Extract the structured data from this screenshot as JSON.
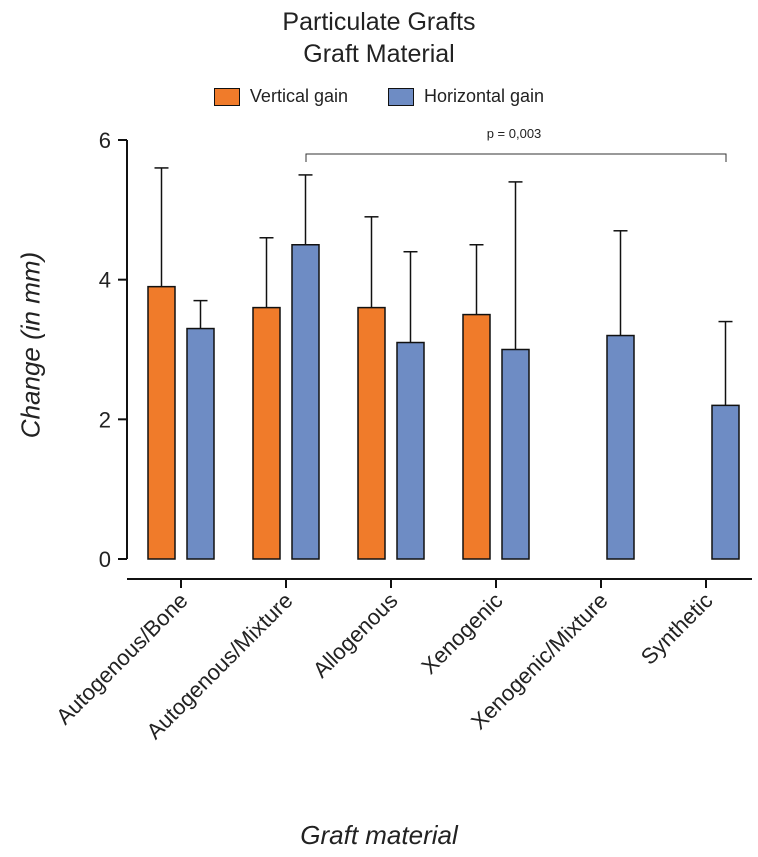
{
  "chart_data": {
    "type": "bar",
    "title": "Particulate Grafts",
    "subtitle": "Graft Material",
    "xlabel": "Graft material",
    "ylabel": "Change (in mm)",
    "ylim": [
      0,
      6
    ],
    "yticks": [
      0,
      2,
      4,
      6
    ],
    "grid": false,
    "legend_position": "top",
    "categories": [
      "Autogenous/Bone",
      "Autogenous/Mixture",
      "Allogenous",
      "Xenogenic",
      "Xenogenic/Mixture",
      "Synthetic"
    ],
    "series": [
      {
        "name": "Vertical gain",
        "color": "#F07B2A",
        "values": [
          3.9,
          3.6,
          3.6,
          3.5,
          null,
          null
        ],
        "error_upper": [
          5.6,
          4.6,
          4.9,
          4.5,
          null,
          null
        ]
      },
      {
        "name": "Horizontal gain",
        "color": "#6E8CC4",
        "values": [
          3.3,
          4.5,
          3.1,
          3.0,
          3.2,
          2.2
        ],
        "error_upper": [
          3.7,
          5.5,
          4.4,
          5.4,
          4.7,
          3.4
        ]
      }
    ],
    "annotations": [
      {
        "text": "p = 0,003",
        "from_category": "Autogenous/Mixture",
        "to_category": "Synthetic"
      }
    ]
  }
}
